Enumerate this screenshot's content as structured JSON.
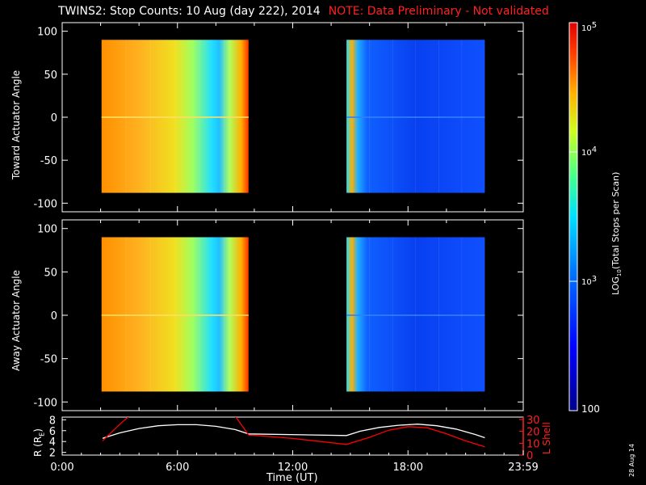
{
  "header": {
    "title": "TWINS2: Stop Counts: 10 Aug (day 222), 2014",
    "note": "NOTE: Data Preliminary - Not validated"
  },
  "footer": {
    "date_stamp": "28 Aug 14"
  },
  "chart_data": [
    {
      "type": "heatmap",
      "panel": "top",
      "ylabel": "Toward Actuator Angle",
      "ylim": [
        -110,
        110
      ],
      "yticks": [
        "100",
        "50",
        "0",
        "-50",
        "-100"
      ],
      "x_unit": "hours UT",
      "xlim": [
        0,
        24
      ],
      "data_blocks": [
        {
          "x_start": 2.05,
          "x_end": 9.7,
          "y_range": [
            -88,
            90
          ],
          "level": "high (~10^4.4 - 10^5)"
        },
        {
          "x_start": 14.8,
          "x_end": 22.0,
          "y_range": [
            -88,
            90
          ],
          "level": "low (~10^2.5)"
        }
      ]
    },
    {
      "type": "heatmap",
      "panel": "middle",
      "ylabel": "Away Actuator Angle",
      "ylim": [
        -110,
        110
      ],
      "yticks": [
        "100",
        "50",
        "0",
        "-50",
        "-100"
      ],
      "x_unit": "hours UT",
      "xlim": [
        0,
        24
      ],
      "data_blocks": [
        {
          "x_start": 2.05,
          "x_end": 9.7,
          "y_range": [
            -88,
            90
          ],
          "level": "high (~10^4.4 - 10^5)"
        },
        {
          "x_start": 14.8,
          "x_end": 22.0,
          "y_range": [
            -88,
            90
          ],
          "level": "low (~10^2.5)"
        }
      ]
    },
    {
      "type": "line",
      "panel": "bottom",
      "xlabel": "Time (UT)",
      "xticks": [
        "0:00",
        "6:00",
        "12:00",
        "18:00",
        "23:59"
      ],
      "ylabel_left": "R (R",
      "ylabel_left_sub": "E",
      "ylabel_left_end": ")",
      "yticks_left": [
        "8",
        "6",
        "4",
        "2"
      ],
      "ylim_left": [
        1.5,
        8.5
      ],
      "ylabel_right": "L Shell",
      "yticks_right": [
        "30",
        "20",
        "10",
        "0"
      ],
      "ylim_right": [
        0,
        32
      ],
      "series": [
        {
          "axis": "left",
          "color": "#ffffff",
          "x": [
            2.1,
            3.0,
            4.0,
            5.0,
            6.0,
            7.0,
            8.0,
            9.0,
            9.7,
            14.8,
            15.5,
            16.5,
            17.5,
            18.5,
            19.5,
            20.5,
            21.5,
            22.0
          ],
          "y": [
            4.6,
            5.6,
            6.4,
            6.9,
            7.1,
            7.1,
            6.8,
            6.2,
            5.4,
            5.1,
            5.9,
            6.6,
            7.0,
            7.2,
            6.9,
            6.3,
            5.3,
            4.7
          ]
        },
        {
          "axis": "right",
          "color": "#ff0000",
          "x": [
            2.1,
            3.0,
            3.5,
            9.0,
            9.7,
            12.0,
            14.8,
            16.0,
            17.0,
            18.0,
            19.0,
            20.0,
            21.0,
            22.0
          ],
          "y": [
            12,
            26,
            33,
            33,
            17,
            14,
            9,
            15,
            21,
            24,
            23,
            18,
            12,
            7
          ]
        }
      ]
    }
  ],
  "colorbar": {
    "label": "LOG",
    "label_sub": "10",
    "label_end": "(Total Stops per Scan)",
    "ticks": [
      {
        "base": "10",
        "exp": "5"
      },
      {
        "base": "10",
        "exp": "4"
      },
      {
        "base": "10",
        "exp": "3"
      },
      {
        "base": "100",
        "exp": ""
      }
    ],
    "log_values": [
      5,
      4,
      3,
      2
    ]
  }
}
